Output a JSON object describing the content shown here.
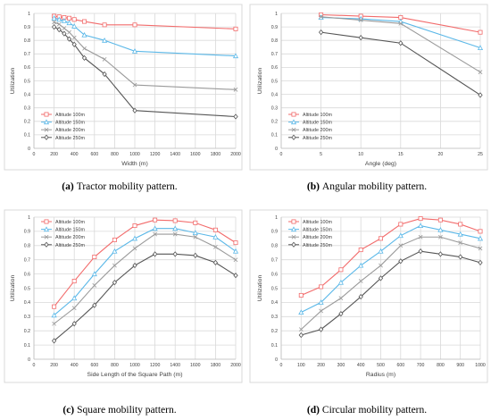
{
  "chart_data": [
    {
      "type": "line",
      "caption_label": "(a)",
      "caption_text": "Tractor mobility pattern.",
      "xlabel": "Width (m)",
      "ylabel": "Utilization",
      "xlim": [
        0,
        2000
      ],
      "ylim": [
        0,
        1
      ],
      "xticks": [
        0,
        200,
        400,
        600,
        800,
        1000,
        1200,
        1400,
        1600,
        1800,
        2000
      ],
      "yticks": [
        0,
        0.1,
        0.2,
        0.3,
        0.4,
        0.5,
        0.6,
        0.7,
        0.8,
        0.9,
        1
      ],
      "grid": true,
      "legend_position": "bottom-left",
      "series": [
        {
          "name": "Altitude 100m",
          "color": "#f26b6b",
          "marker": "square",
          "x": [
            200,
            250,
            300,
            350,
            400,
            500,
            700,
            1000,
            2000
          ],
          "y": [
            0.98,
            0.975,
            0.97,
            0.965,
            0.955,
            0.94,
            0.915,
            0.915,
            0.885
          ]
        },
        {
          "name": "Altitude 150m",
          "color": "#5bb8e8",
          "marker": "triangle",
          "x": [
            200,
            250,
            300,
            350,
            400,
            500,
            700,
            1000,
            2000
          ],
          "y": [
            0.965,
            0.955,
            0.945,
            0.93,
            0.905,
            0.84,
            0.8,
            0.72,
            0.685
          ]
        },
        {
          "name": "Altitude 200m",
          "color": "#9a9a9a",
          "marker": "x",
          "x": [
            200,
            250,
            300,
            350,
            400,
            500,
            700,
            1000,
            2000
          ],
          "y": [
            0.935,
            0.92,
            0.89,
            0.86,
            0.82,
            0.74,
            0.66,
            0.47,
            0.435
          ]
        },
        {
          "name": "Altitude 250m",
          "color": "#555555",
          "marker": "diamond",
          "x": [
            200,
            250,
            300,
            350,
            400,
            500,
            700,
            1000,
            2000
          ],
          "y": [
            0.9,
            0.88,
            0.85,
            0.81,
            0.77,
            0.67,
            0.55,
            0.28,
            0.235
          ]
        }
      ]
    },
    {
      "type": "line",
      "caption_label": "(b)",
      "caption_text": "Angular mobility pattern.",
      "xlabel": "Angle (deg)",
      "ylabel": "Utilization",
      "xlim": [
        0,
        25
      ],
      "ylim": [
        0,
        1
      ],
      "xticks": [
        0,
        5,
        10,
        15,
        20,
        25
      ],
      "yticks": [
        0,
        0.1,
        0.2,
        0.3,
        0.4,
        0.5,
        0.6,
        0.7,
        0.8,
        0.9,
        1
      ],
      "grid": true,
      "legend_position": "bottom-left",
      "series": [
        {
          "name": "Altitude 100m",
          "color": "#f26b6b",
          "marker": "square",
          "x": [
            5,
            10,
            15,
            25
          ],
          "y": [
            0.99,
            0.98,
            0.97,
            0.86
          ]
        },
        {
          "name": "Altitude 150m",
          "color": "#5bb8e8",
          "marker": "triangle",
          "x": [
            5,
            10,
            15,
            25
          ],
          "y": [
            0.97,
            0.96,
            0.94,
            0.745
          ]
        },
        {
          "name": "Altitude 200m",
          "color": "#9a9a9a",
          "marker": "x",
          "x": [
            5,
            10,
            15,
            25
          ],
          "y": [
            0.975,
            0.95,
            0.925,
            0.565
          ]
        },
        {
          "name": "Altitude 250m",
          "color": "#555555",
          "marker": "diamond",
          "x": [
            5,
            10,
            15,
            25
          ],
          "y": [
            0.86,
            0.82,
            0.78,
            0.395
          ]
        }
      ]
    },
    {
      "type": "line",
      "caption_label": "(c)",
      "caption_text": "Square mobility pattern.",
      "xlabel": "Side Length of the Square Path (m)",
      "ylabel": "Utilization",
      "xlim": [
        0,
        2000
      ],
      "ylim": [
        0,
        1
      ],
      "xticks": [
        0,
        200,
        400,
        600,
        800,
        1000,
        1200,
        1400,
        1600,
        1800,
        2000
      ],
      "yticks": [
        0,
        0.1,
        0.2,
        0.3,
        0.4,
        0.5,
        0.6,
        0.7,
        0.8,
        0.9,
        1
      ],
      "grid": true,
      "legend_position": "top-left",
      "series": [
        {
          "name": "Altitude 100m",
          "color": "#f26b6b",
          "marker": "square",
          "x": [
            200,
            400,
            600,
            800,
            1000,
            1200,
            1400,
            1600,
            1800,
            2000
          ],
          "y": [
            0.37,
            0.55,
            0.72,
            0.84,
            0.94,
            0.98,
            0.975,
            0.96,
            0.91,
            0.82
          ]
        },
        {
          "name": "Altitude 150m",
          "color": "#5bb8e8",
          "marker": "triangle",
          "x": [
            200,
            400,
            600,
            800,
            1000,
            1200,
            1400,
            1600,
            1800,
            2000
          ],
          "y": [
            0.31,
            0.43,
            0.6,
            0.76,
            0.85,
            0.92,
            0.92,
            0.89,
            0.86,
            0.76
          ]
        },
        {
          "name": "Altitude 200m",
          "color": "#9a9a9a",
          "marker": "x",
          "x": [
            200,
            400,
            600,
            800,
            1000,
            1200,
            1400,
            1600,
            1800,
            2000
          ],
          "y": [
            0.25,
            0.36,
            0.52,
            0.66,
            0.78,
            0.88,
            0.88,
            0.86,
            0.79,
            0.7
          ]
        },
        {
          "name": "Altitude 250m",
          "color": "#555555",
          "marker": "diamond",
          "x": [
            200,
            400,
            600,
            800,
            1000,
            1200,
            1400,
            1600,
            1800,
            2000
          ],
          "y": [
            0.13,
            0.25,
            0.38,
            0.54,
            0.66,
            0.74,
            0.74,
            0.73,
            0.68,
            0.59
          ]
        }
      ]
    },
    {
      "type": "line",
      "caption_label": "(d)",
      "caption_text": "Circular mobility pattern.",
      "xlabel": "Radius (m)",
      "ylabel": "Utilization",
      "xlim": [
        0,
        1000
      ],
      "ylim": [
        0,
        1
      ],
      "xticks": [
        0,
        100,
        200,
        300,
        400,
        500,
        600,
        700,
        800,
        900,
        1000
      ],
      "yticks": [
        0,
        0.1,
        0.2,
        0.3,
        0.4,
        0.5,
        0.6,
        0.7,
        0.8,
        0.9,
        1
      ],
      "grid": true,
      "legend_position": "top-left",
      "series": [
        {
          "name": "Altitude 100m",
          "color": "#f26b6b",
          "marker": "square",
          "x": [
            100,
            200,
            300,
            400,
            500,
            600,
            700,
            800,
            900,
            1000
          ],
          "y": [
            0.45,
            0.51,
            0.63,
            0.77,
            0.85,
            0.95,
            0.99,
            0.98,
            0.95,
            0.9
          ]
        },
        {
          "name": "Altitude 150m",
          "color": "#5bb8e8",
          "marker": "triangle",
          "x": [
            100,
            200,
            300,
            400,
            500,
            600,
            700,
            800,
            900,
            1000
          ],
          "y": [
            0.33,
            0.4,
            0.54,
            0.66,
            0.76,
            0.87,
            0.94,
            0.91,
            0.88,
            0.85
          ]
        },
        {
          "name": "Altitude 200m",
          "color": "#9a9a9a",
          "marker": "x",
          "x": [
            100,
            200,
            300,
            400,
            500,
            600,
            700,
            800,
            900,
            1000
          ],
          "y": [
            0.21,
            0.34,
            0.43,
            0.55,
            0.66,
            0.8,
            0.86,
            0.86,
            0.82,
            0.78
          ]
        },
        {
          "name": "Altitude 250m",
          "color": "#555555",
          "marker": "diamond",
          "x": [
            100,
            200,
            300,
            400,
            500,
            600,
            700,
            800,
            900,
            1000
          ],
          "y": [
            0.17,
            0.21,
            0.32,
            0.44,
            0.57,
            0.69,
            0.76,
            0.74,
            0.72,
            0.68
          ]
        }
      ]
    }
  ]
}
